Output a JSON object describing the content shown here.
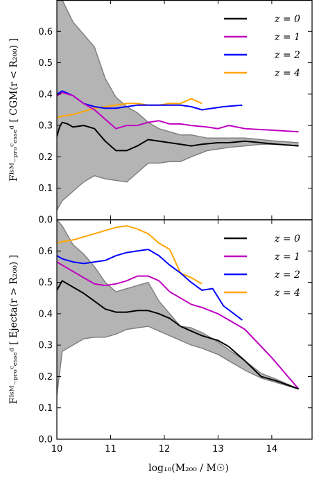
{
  "figure": {
    "xlabel": "log₁₀(M₂₀₀ / M☉)",
    "xlim": [
      10,
      14.75
    ],
    "xticks": [
      10,
      11,
      12,
      13,
      14
    ]
  },
  "colors": {
    "z0": "#000000",
    "z1": "#bf00bf",
    "z2": "#0000ff",
    "z4": "#ffa500",
    "band_fill": "#b4b4b4",
    "band_edge": "#808080"
  },
  "chart_data": [
    {
      "type": "line",
      "panel": "top",
      "ylabel": "Fᴵˢᴹ₋ₚᵣₒᶜₑₛₛₑᵈ [ CGM(r < R₂₀₀) ]",
      "ylim": [
        0,
        0.7
      ],
      "yticks": [
        "0.0",
        "0.1",
        "0.2",
        "0.3",
        "0.4",
        "0.5",
        "0.6"
      ],
      "legend_loc": "top-right",
      "band": {
        "x": [
          10,
          10.1,
          10.3,
          10.5,
          10.7,
          10.9,
          11.1,
          11.3,
          11.5,
          11.7,
          11.9,
          12.1,
          12.3,
          12.5,
          12.8,
          13.0,
          13.2,
          13.5,
          13.8,
          14.1,
          14.5
        ],
        "upper": [
          0.7,
          0.7,
          0.63,
          0.59,
          0.55,
          0.45,
          0.39,
          0.36,
          0.34,
          0.31,
          0.29,
          0.28,
          0.27,
          0.27,
          0.26,
          0.26,
          0.26,
          0.26,
          0.255,
          0.25,
          0.245
        ],
        "lower": [
          0.03,
          0.06,
          0.09,
          0.12,
          0.14,
          0.13,
          0.125,
          0.12,
          0.15,
          0.18,
          0.18,
          0.185,
          0.185,
          0.2,
          0.22,
          0.225,
          0.23,
          0.235,
          0.24,
          0.24,
          0.235
        ]
      },
      "series": [
        {
          "name": "z = 0",
          "key": "z0",
          "x": [
            10.0,
            10.05,
            10.1,
            10.2,
            10.3,
            10.5,
            10.7,
            10.9,
            11.0,
            11.1,
            11.3,
            11.5,
            11.7,
            11.9,
            12.1,
            12.3,
            12.5,
            12.7,
            13.0,
            13.2,
            13.5,
            13.8,
            14.1,
            14.5
          ],
          "y": [
            0.265,
            0.295,
            0.31,
            0.305,
            0.295,
            0.3,
            0.29,
            0.25,
            0.235,
            0.22,
            0.22,
            0.235,
            0.255,
            0.25,
            0.245,
            0.24,
            0.235,
            0.24,
            0.245,
            0.245,
            0.25,
            0.245,
            0.24,
            0.235
          ]
        },
        {
          "name": "z = 1",
          "key": "z1",
          "x": [
            10.0,
            10.1,
            10.3,
            10.5,
            10.7,
            10.9,
            11.1,
            11.3,
            11.5,
            11.7,
            11.9,
            12.1,
            12.3,
            12.5,
            12.8,
            13.0,
            13.2,
            13.5,
            14.0,
            14.5
          ],
          "y": [
            0.395,
            0.405,
            0.395,
            0.37,
            0.35,
            0.32,
            0.29,
            0.3,
            0.3,
            0.31,
            0.315,
            0.305,
            0.305,
            0.3,
            0.295,
            0.29,
            0.3,
            0.29,
            0.285,
            0.28
          ]
        },
        {
          "name": "z = 2",
          "key": "z2",
          "x": [
            10.0,
            10.1,
            10.3,
            10.5,
            10.7,
            10.9,
            11.1,
            11.3,
            11.5,
            11.7,
            11.9,
            12.1,
            12.3,
            12.5,
            12.7,
            12.9,
            13.1,
            13.45
          ],
          "y": [
            0.4,
            0.41,
            0.395,
            0.37,
            0.36,
            0.355,
            0.355,
            0.36,
            0.365,
            0.365,
            0.365,
            0.365,
            0.365,
            0.36,
            0.35,
            0.355,
            0.36,
            0.365
          ]
        },
        {
          "name": "z = 4",
          "key": "z4",
          "x": [
            10.0,
            10.1,
            10.3,
            10.5,
            10.7,
            10.9,
            11.1,
            11.3,
            11.5,
            11.7,
            11.9,
            12.1,
            12.3,
            12.5,
            12.7
          ],
          "y": [
            0.325,
            0.33,
            0.335,
            0.345,
            0.355,
            0.36,
            0.365,
            0.37,
            0.37,
            0.365,
            0.365,
            0.37,
            0.37,
            0.385,
            0.37
          ]
        }
      ]
    },
    {
      "type": "line",
      "panel": "bottom",
      "ylabel": "Fᴵˢᴹ₋ₚᵣₒᶜₑₛₛₑᵈ [ Ejecta(r > R₂₀₀) ]",
      "ylim": [
        0,
        0.7
      ],
      "yticks": [
        "0.0",
        "0.1",
        "0.2",
        "0.3",
        "0.4",
        "0.5",
        "0.6"
      ],
      "legend_loc": "top-right",
      "band": {
        "x": [
          10,
          10.1,
          10.3,
          10.5,
          10.7,
          10.9,
          11.1,
          11.3,
          11.5,
          11.7,
          11.9,
          12.1,
          12.3,
          12.5,
          12.7,
          13.0,
          13.2,
          13.5,
          13.8,
          14.1,
          14.5
        ],
        "upper": [
          0.7,
          0.68,
          0.62,
          0.59,
          0.55,
          0.5,
          0.47,
          0.48,
          0.49,
          0.5,
          0.44,
          0.4,
          0.36,
          0.355,
          0.34,
          0.31,
          0.285,
          0.25,
          0.21,
          0.19,
          0.16
        ],
        "lower": [
          0.14,
          0.28,
          0.3,
          0.32,
          0.325,
          0.325,
          0.335,
          0.35,
          0.355,
          0.36,
          0.345,
          0.33,
          0.315,
          0.3,
          0.29,
          0.27,
          0.25,
          0.22,
          0.195,
          0.18,
          0.16
        ]
      },
      "series": [
        {
          "name": "z = 0",
          "key": "z0",
          "x": [
            10.0,
            10.05,
            10.1,
            10.3,
            10.5,
            10.7,
            10.9,
            11.1,
            11.3,
            11.5,
            11.7,
            11.9,
            12.1,
            12.3,
            12.5,
            12.7,
            13.0,
            13.2,
            13.5,
            13.8,
            14.1,
            14.5
          ],
          "y": [
            0.475,
            0.49,
            0.505,
            0.485,
            0.465,
            0.44,
            0.415,
            0.405,
            0.405,
            0.41,
            0.41,
            0.4,
            0.385,
            0.36,
            0.345,
            0.33,
            0.315,
            0.295,
            0.25,
            0.2,
            0.185,
            0.16
          ]
        },
        {
          "name": "z = 1",
          "key": "z1",
          "x": [
            10.0,
            10.1,
            10.3,
            10.5,
            10.7,
            10.9,
            11.1,
            11.3,
            11.5,
            11.7,
            11.9,
            12.1,
            12.3,
            12.5,
            12.7,
            13.0,
            13.2,
            13.5,
            14.0,
            14.5
          ],
          "y": [
            0.565,
            0.555,
            0.535,
            0.515,
            0.495,
            0.49,
            0.495,
            0.505,
            0.52,
            0.52,
            0.505,
            0.47,
            0.45,
            0.43,
            0.42,
            0.4,
            0.38,
            0.35,
            0.26,
            0.16
          ]
        },
        {
          "name": "z = 2",
          "key": "z2",
          "x": [
            10.0,
            10.1,
            10.3,
            10.5,
            10.7,
            10.9,
            11.1,
            11.3,
            11.5,
            11.7,
            11.9,
            12.1,
            12.3,
            12.5,
            12.7,
            12.9,
            13.1,
            13.45
          ],
          "y": [
            0.585,
            0.575,
            0.565,
            0.56,
            0.565,
            0.57,
            0.585,
            0.595,
            0.6,
            0.605,
            0.585,
            0.555,
            0.53,
            0.5,
            0.475,
            0.48,
            0.425,
            0.38
          ]
        },
        {
          "name": "z = 4",
          "key": "z4",
          "x": [
            10.0,
            10.1,
            10.3,
            10.5,
            10.7,
            10.9,
            11.1,
            11.3,
            11.5,
            11.7,
            11.9,
            12.1,
            12.3,
            12.5,
            12.7
          ],
          "y": [
            0.625,
            0.63,
            0.635,
            0.645,
            0.655,
            0.665,
            0.675,
            0.68,
            0.67,
            0.655,
            0.625,
            0.605,
            0.53,
            0.515,
            0.495
          ]
        }
      ]
    }
  ]
}
